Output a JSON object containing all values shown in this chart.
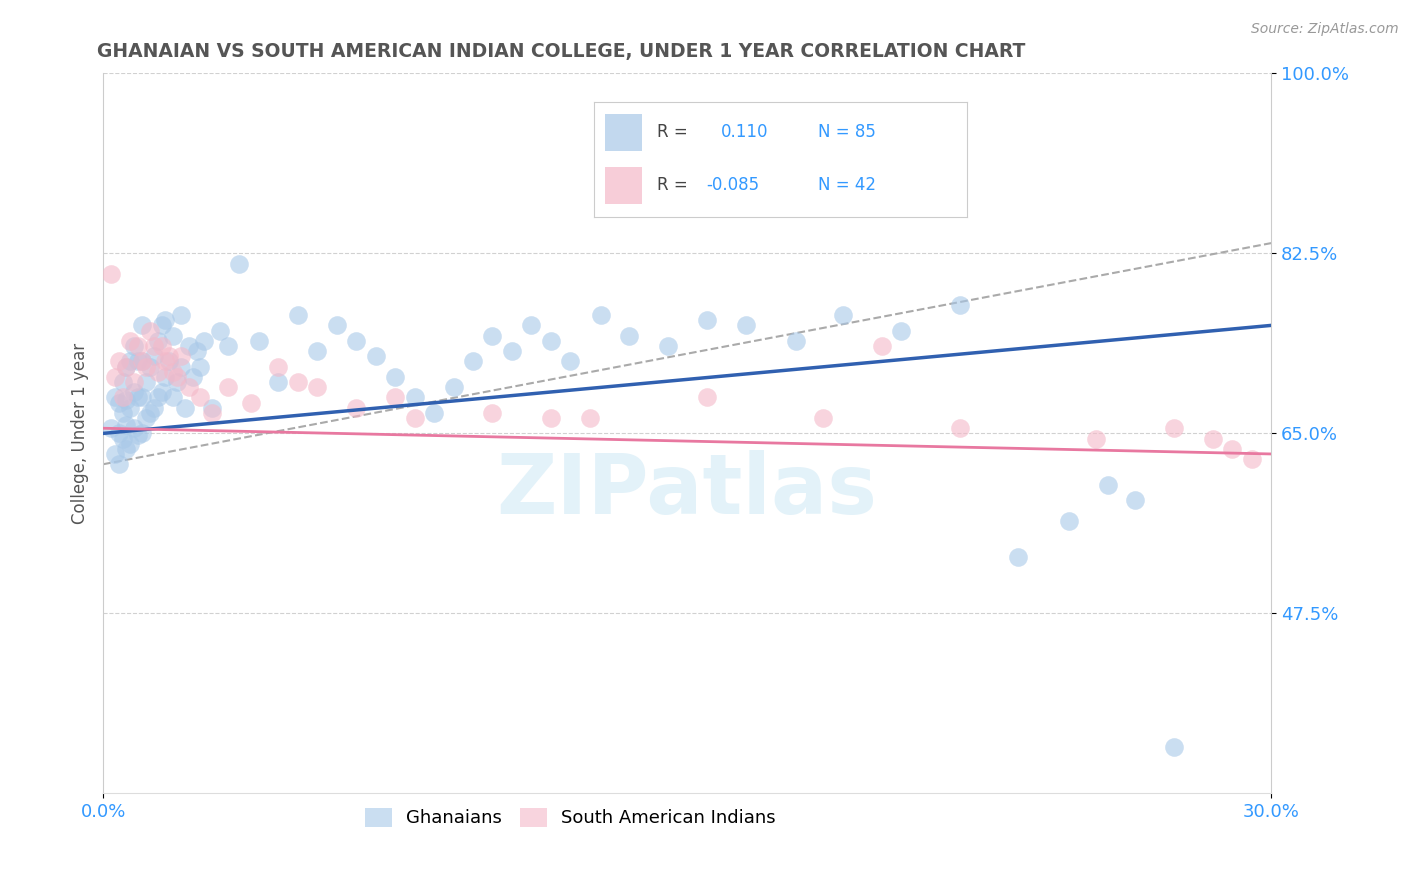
{
  "title": "GHANAIAN VS SOUTH AMERICAN INDIAN COLLEGE, UNDER 1 YEAR CORRELATION CHART",
  "source": "Source: ZipAtlas.com",
  "ylabel": "College, Under 1 year",
  "xlim": [
    0.0,
    30.0
  ],
  "ylim": [
    30.0,
    100.0
  ],
  "xticks": [
    0.0,
    30.0
  ],
  "xticklabels": [
    "0.0%",
    "30.0%"
  ],
  "yticks": [
    47.5,
    65.0,
    82.5,
    100.0
  ],
  "yticklabels": [
    "47.5%",
    "65.0%",
    "82.5%",
    "100.0%"
  ],
  "blue_color": "#a8c8e8",
  "pink_color": "#f4b8c8",
  "blue_line_color": "#3060b0",
  "pink_line_color": "#e878a0",
  "dash_line_color": "#aaaaaa",
  "title_color": "#555555",
  "axis_label_color": "#555555",
  "tick_color": "#3399ff",
  "watermark": "ZIPatlas",
  "ghanaians_x": [
    0.2,
    0.3,
    0.3,
    0.4,
    0.4,
    0.4,
    0.5,
    0.5,
    0.5,
    0.6,
    0.6,
    0.6,
    0.6,
    0.7,
    0.7,
    0.7,
    0.8,
    0.8,
    0.8,
    0.9,
    0.9,
    0.9,
    1.0,
    1.0,
    1.0,
    1.0,
    1.1,
    1.1,
    1.2,
    1.2,
    1.3,
    1.3,
    1.4,
    1.4,
    1.5,
    1.5,
    1.6,
    1.6,
    1.7,
    1.8,
    1.8,
    1.9,
    2.0,
    2.0,
    2.1,
    2.2,
    2.3,
    2.4,
    2.5,
    2.6,
    2.8,
    3.0,
    3.2,
    3.5,
    4.0,
    4.5,
    5.0,
    5.5,
    6.0,
    6.5,
    7.0,
    7.5,
    8.0,
    8.5,
    9.0,
    9.5,
    10.0,
    10.5,
    11.0,
    11.5,
    12.0,
    12.8,
    13.5,
    14.5,
    15.5,
    16.5,
    17.8,
    19.0,
    20.5,
    22.0,
    23.5,
    24.8,
    25.8,
    26.5,
    27.5
  ],
  "ghanaians_y": [
    65.5,
    63.0,
    68.5,
    62.0,
    65.0,
    68.0,
    64.5,
    67.0,
    70.0,
    63.5,
    65.8,
    68.2,
    71.5,
    64.0,
    67.5,
    72.0,
    65.5,
    69.0,
    73.5,
    64.8,
    68.5,
    72.0,
    65.0,
    68.5,
    72.0,
    75.5,
    66.5,
    70.0,
    67.0,
    71.5,
    67.5,
    72.5,
    68.5,
    74.0,
    69.0,
    75.5,
    70.5,
    76.0,
    72.0,
    68.5,
    74.5,
    70.0,
    71.5,
    76.5,
    67.5,
    73.5,
    70.5,
    73.0,
    71.5,
    74.0,
    67.5,
    75.0,
    73.5,
    81.5,
    74.0,
    70.0,
    76.5,
    73.0,
    75.5,
    74.0,
    72.5,
    70.5,
    68.5,
    67.0,
    69.5,
    72.0,
    74.5,
    73.0,
    75.5,
    74.0,
    72.0,
    76.5,
    74.5,
    73.5,
    76.0,
    75.5,
    74.0,
    76.5,
    75.0,
    77.5,
    53.0,
    56.5,
    60.0,
    58.5,
    34.5
  ],
  "sa_indians_x": [
    0.2,
    0.3,
    0.4,
    0.5,
    0.6,
    0.7,
    0.8,
    0.9,
    1.0,
    1.1,
    1.2,
    1.3,
    1.4,
    1.5,
    1.6,
    1.7,
    1.8,
    1.9,
    2.0,
    2.2,
    2.5,
    2.8,
    3.2,
    3.8,
    4.5,
    5.5,
    6.5,
    8.0,
    10.0,
    12.5,
    15.5,
    18.5,
    22.0,
    25.5,
    27.5,
    28.5,
    29.0,
    29.5,
    5.0,
    7.5,
    11.5,
    20.0
  ],
  "sa_indians_y": [
    80.5,
    70.5,
    72.0,
    68.5,
    71.5,
    74.0,
    70.0,
    73.5,
    72.0,
    71.5,
    75.0,
    73.5,
    71.0,
    73.5,
    72.0,
    72.5,
    71.0,
    70.5,
    72.5,
    69.5,
    68.5,
    67.0,
    69.5,
    68.0,
    71.5,
    69.5,
    67.5,
    66.5,
    67.0,
    66.5,
    68.5,
    66.5,
    65.5,
    64.5,
    65.5,
    64.5,
    63.5,
    62.5,
    70.0,
    68.5,
    66.5,
    73.5
  ],
  "blue_line_x": [
    0.0,
    30.0
  ],
  "blue_line_y": [
    65.0,
    75.5
  ],
  "pink_line_x": [
    0.0,
    30.0
  ],
  "pink_line_y": [
    65.5,
    63.0
  ],
  "dash_line_x": [
    0.0,
    30.0
  ],
  "dash_line_y": [
    62.0,
    83.5
  ]
}
